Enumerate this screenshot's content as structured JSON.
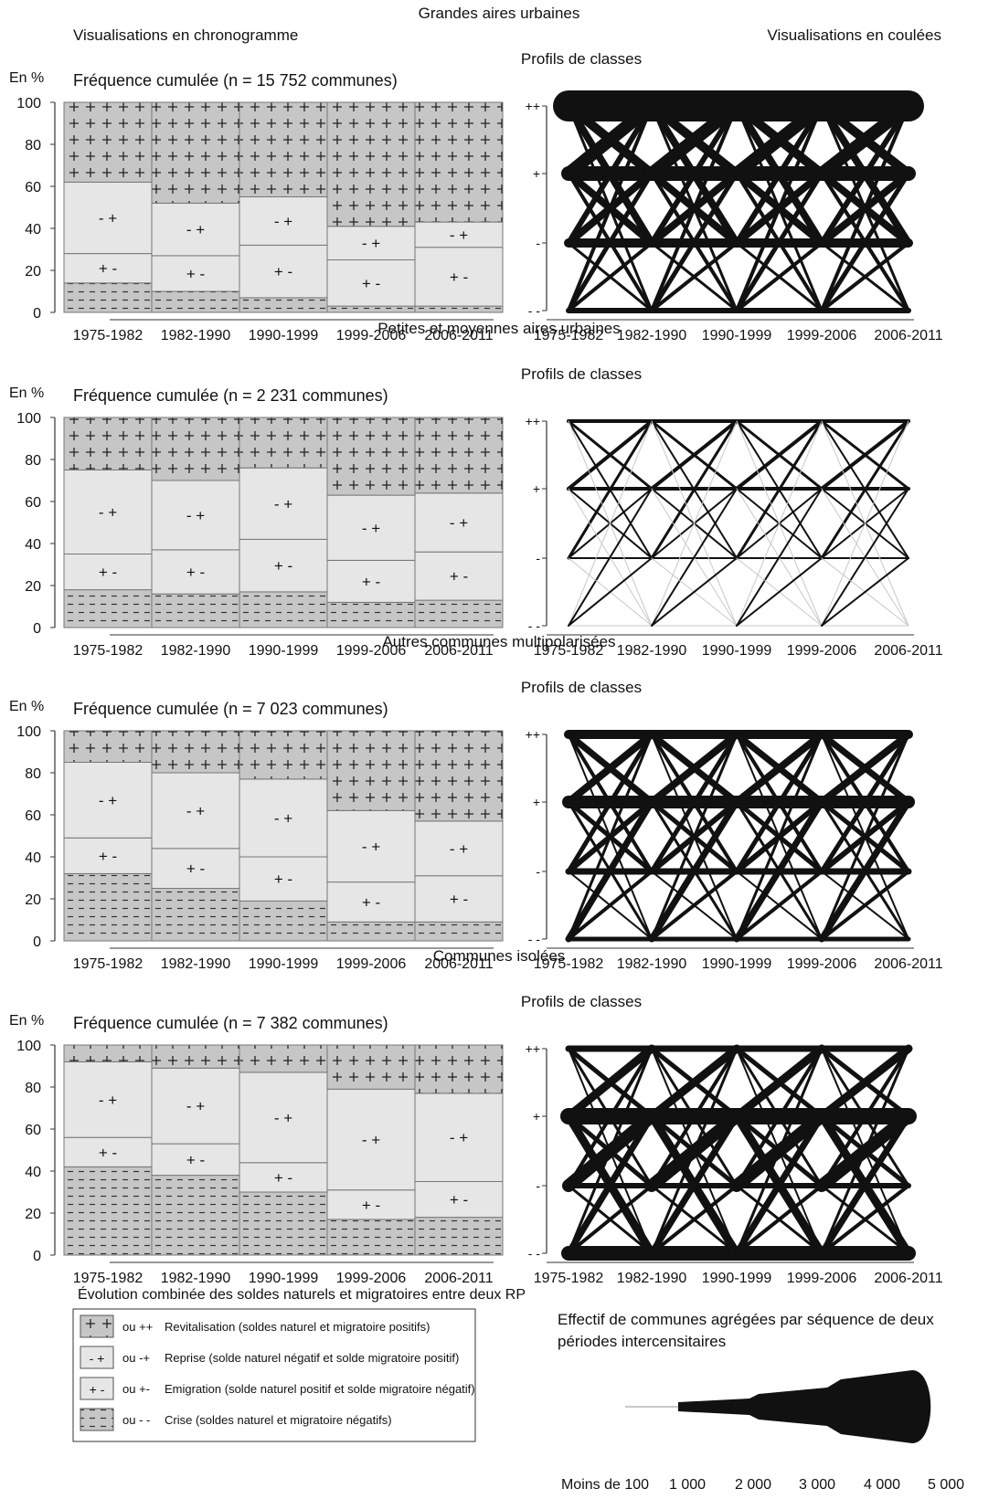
{
  "labels": {
    "chrono_title": "Visualisations en chronogramme",
    "coulee_title": "Visualisations en coulées",
    "y_unit": "En %",
    "profile_title": "Profils de classes",
    "periods": [
      "1975-1982",
      "1982-1990",
      "1990-1999",
      "1999-2006",
      "2006-2011"
    ],
    "class_labels": [
      "++",
      "+",
      "-",
      "- -"
    ],
    "segment_symbols": [
      "- +",
      "+ -"
    ],
    "y_ticks": [
      0,
      20,
      40,
      60,
      80,
      100
    ]
  },
  "chart_data": [
    {
      "type": "bar",
      "title": "Grandes aires urbaines",
      "subtitle": "Fréquence cumulée (n = 15 752 communes)",
      "categories": [
        "1975-1982",
        "1982-1990",
        "1990-1999",
        "1999-2006",
        "2006-2011"
      ],
      "ylabel": "En %",
      "ylim": [
        0,
        100
      ],
      "series": [
        {
          "name": "- -",
          "values": [
            14,
            10,
            7,
            3,
            3
          ]
        },
        {
          "name": "+ -",
          "values": [
            14,
            17,
            25,
            22,
            28
          ]
        },
        {
          "name": "- +",
          "values": [
            34,
            25,
            23,
            16,
            12
          ]
        },
        {
          "name": "++",
          "values": [
            38,
            48,
            45,
            59,
            57
          ]
        }
      ]
    },
    {
      "type": "bar",
      "title": "Petites et moyennes aires urbaines",
      "subtitle": "Fréquence cumulée (n = 2 231 communes)",
      "categories": [
        "1975-1982",
        "1982-1990",
        "1990-1999",
        "1999-2006",
        "2006-2011"
      ],
      "ylabel": "En %",
      "ylim": [
        0,
        100
      ],
      "series": [
        {
          "name": "- -",
          "values": [
            18,
            16,
            17,
            12,
            13
          ]
        },
        {
          "name": "+ -",
          "values": [
            17,
            21,
            25,
            20,
            23
          ]
        },
        {
          "name": "- +",
          "values": [
            40,
            33,
            34,
            31,
            28
          ]
        },
        {
          "name": "++",
          "values": [
            25,
            30,
            24,
            37,
            36
          ]
        }
      ]
    },
    {
      "type": "bar",
      "title": "Autres communes multipolarisées",
      "subtitle": "Fréquence cumulée (n = 7 023 communes)",
      "categories": [
        "1975-1982",
        "1982-1990",
        "1990-1999",
        "1999-2006",
        "2006-2011"
      ],
      "ylabel": "En %",
      "ylim": [
        0,
        100
      ],
      "series": [
        {
          "name": "- -",
          "values": [
            32,
            25,
            19,
            9,
            9
          ]
        },
        {
          "name": "+ -",
          "values": [
            17,
            19,
            21,
            19,
            22
          ]
        },
        {
          "name": "- +",
          "values": [
            36,
            36,
            37,
            34,
            26
          ]
        },
        {
          "name": "++",
          "values": [
            15,
            20,
            23,
            38,
            43
          ]
        }
      ]
    },
    {
      "type": "bar",
      "title": "Communes isolées",
      "subtitle": "Fréquence cumulée (n = 7 382 communes)",
      "categories": [
        "1975-1982",
        "1982-1990",
        "1990-1999",
        "1999-2006",
        "2006-2011"
      ],
      "ylabel": "En %",
      "ylim": [
        0,
        100
      ],
      "series": [
        {
          "name": "- -",
          "values": [
            42,
            38,
            30,
            17,
            18
          ]
        },
        {
          "name": "+ -",
          "values": [
            14,
            15,
            14,
            14,
            17
          ]
        },
        {
          "name": "- +",
          "values": [
            36,
            36,
            43,
            48,
            42
          ]
        },
        {
          "name": "++",
          "values": [
            8,
            11,
            13,
            21,
            23
          ]
        }
      ]
    }
  ],
  "legend": {
    "title": "Évolution combinée des soldes naturels et migratoires entre deux RP",
    "items": [
      {
        "code": "ou ++",
        "text": "Revitalisation (soldes naturel et migratoire positifs)",
        "pattern": "plus"
      },
      {
        "code": "ou -+",
        "text": "Reprise (solde naturel négatif et solde migratoire positif)",
        "pattern": "light"
      },
      {
        "code": "ou +-",
        "text": "Emigration (solde naturel positif et solde migratoire négatif)",
        "pattern": "light"
      },
      {
        "code": "ou - -",
        "text": "Crise (soldes naturel et migratoire négatifs)",
        "pattern": "dash"
      }
    ],
    "size_title_1": "Effectif de communes agrégées par séquence de deux",
    "size_title_2": "périodes intercensitaires",
    "size_labels": [
      "Moins de 100",
      "1 000",
      "2 000",
      "3 000",
      "4 000",
      "5 000"
    ]
  },
  "colors": {
    "light_fill": "#e6e6e6",
    "dark_fill": "#c6c6c6",
    "line_dark": "#111111",
    "line_light": "#c8c8c8"
  }
}
